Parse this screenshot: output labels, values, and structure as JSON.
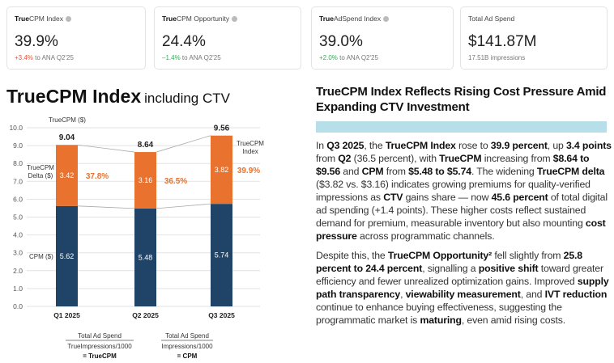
{
  "cards": [
    {
      "label_bold": "True",
      "label": "CPM Index",
      "info": true,
      "value": "39.9%",
      "delta": "+3.4%",
      "delta_dir": "up",
      "delta_suffix": " to ANA Q2'25"
    },
    {
      "label_bold": "True",
      "label": "CPM Opportunity",
      "info": true,
      "value": "24.4%",
      "delta": "–1.4%",
      "delta_dir": "down",
      "delta_suffix": " to ANA Q2'25"
    },
    {
      "label_bold": "True",
      "label": "AdSpend Index",
      "info": true,
      "value": "39.0%",
      "delta": "+2.0%",
      "delta_dir": "down",
      "delta_suffix": " to ANA Q2'25"
    },
    {
      "label_bold": "",
      "label": "Total Ad Spend",
      "info": false,
      "value": "$141.87M",
      "delta": "",
      "delta_dir": "",
      "delta_suffix": "17.51B impressions"
    }
  ],
  "title": {
    "main": "TrueCPM Index",
    "sub": "including CTV"
  },
  "chart_data": {
    "type": "bar",
    "stacked": true,
    "categories": [
      "Q1 2025",
      "Q2 2025",
      "Q3 2025"
    ],
    "series": [
      {
        "name": "CPM ($)",
        "values": [
          5.62,
          5.48,
          5.74
        ],
        "color": "#1f4467"
      },
      {
        "name": "TrueCPM Delta ($)",
        "values": [
          3.42,
          3.16,
          3.82
        ],
        "color": "#e8722e"
      }
    ],
    "totals": [
      9.04,
      8.64,
      9.56
    ],
    "index_pct": [
      "37.8%",
      "36.5%",
      "39.9%"
    ],
    "ylim": [
      0,
      10
    ],
    "yticks": [
      "0.0",
      "1.0",
      "2.0",
      "3.0",
      "4.0",
      "5.0",
      "6.0",
      "7.0",
      "8.0",
      "9.0",
      "10.0"
    ],
    "annotations": {
      "truecpm": "TrueCPM ($)",
      "delta": [
        "TrueCPM",
        "Delta ($)"
      ],
      "cpm": "CPM ($)",
      "index": [
        "TrueCPM",
        "Index"
      ]
    },
    "formulas": [
      {
        "numerator": "Total Ad Spend",
        "denominator": "TrueImpressions/1000",
        "result": "= TrueCPM"
      },
      {
        "numerator": "Total Ad Spend",
        "denominator": "Impressions/1000",
        "result": "= CPM"
      }
    ],
    "grid": true
  },
  "article": {
    "heading": "TrueCPM Index Reflects Rising Cost Pressure Amid Expanding CTV Investment",
    "paragraphs": [
      [
        [
          "In ",
          0
        ],
        [
          "Q3 2025",
          1
        ],
        [
          ", the ",
          0
        ],
        [
          "TrueCPM Index",
          1
        ],
        [
          " rose to ",
          0
        ],
        [
          "39.9 percent",
          1
        ],
        [
          ", up ",
          0
        ],
        [
          "3.4 points",
          1
        ],
        [
          " from ",
          0
        ],
        [
          "Q2",
          1
        ],
        [
          " (36.5 percent), with ",
          0
        ],
        [
          "TrueCPM",
          1
        ],
        [
          " increasing from ",
          0
        ],
        [
          "$8.64 to $9.56",
          1
        ],
        [
          " and ",
          0
        ],
        [
          "CPM",
          1
        ],
        [
          " from ",
          0
        ],
        [
          "$5.48 to $5.74",
          1
        ],
        [
          ". The widening ",
          0
        ],
        [
          "TrueCPM delta",
          1
        ],
        [
          " ($3.82 vs. $3.16) indicates growing premiums for quality-verified impressions as ",
          0
        ],
        [
          "CTV",
          1
        ],
        [
          " gains share — now ",
          0
        ],
        [
          "45.6 percent",
          1
        ],
        [
          " of total digital ad spending (+1.4 points). These higher costs reflect sustained demand for premium, measurable inventory but also mounting ",
          0
        ],
        [
          "cost pressure",
          1
        ],
        [
          " across programmatic channels.",
          0
        ]
      ],
      [
        [
          "Despite this, the ",
          0
        ],
        [
          "TrueCPM Opportunity²",
          1
        ],
        [
          " fell slightly from ",
          0
        ],
        [
          "25.8 percent to 24.4 percent",
          1
        ],
        [
          ", signalling a ",
          0
        ],
        [
          "positive shift",
          1
        ],
        [
          " toward greater efficiency and fewer unrealized optimization gains. Improved ",
          0
        ],
        [
          "supply path transparency",
          1
        ],
        [
          ", ",
          0
        ],
        [
          "viewability measurement",
          1
        ],
        [
          ", and ",
          0
        ],
        [
          "IVT reduction",
          1
        ],
        [
          " continue to enhance buying effectiveness, suggesting the programmatic market is ",
          0
        ],
        [
          "maturing",
          1
        ],
        [
          ", even amid rising costs.",
          0
        ]
      ]
    ]
  }
}
